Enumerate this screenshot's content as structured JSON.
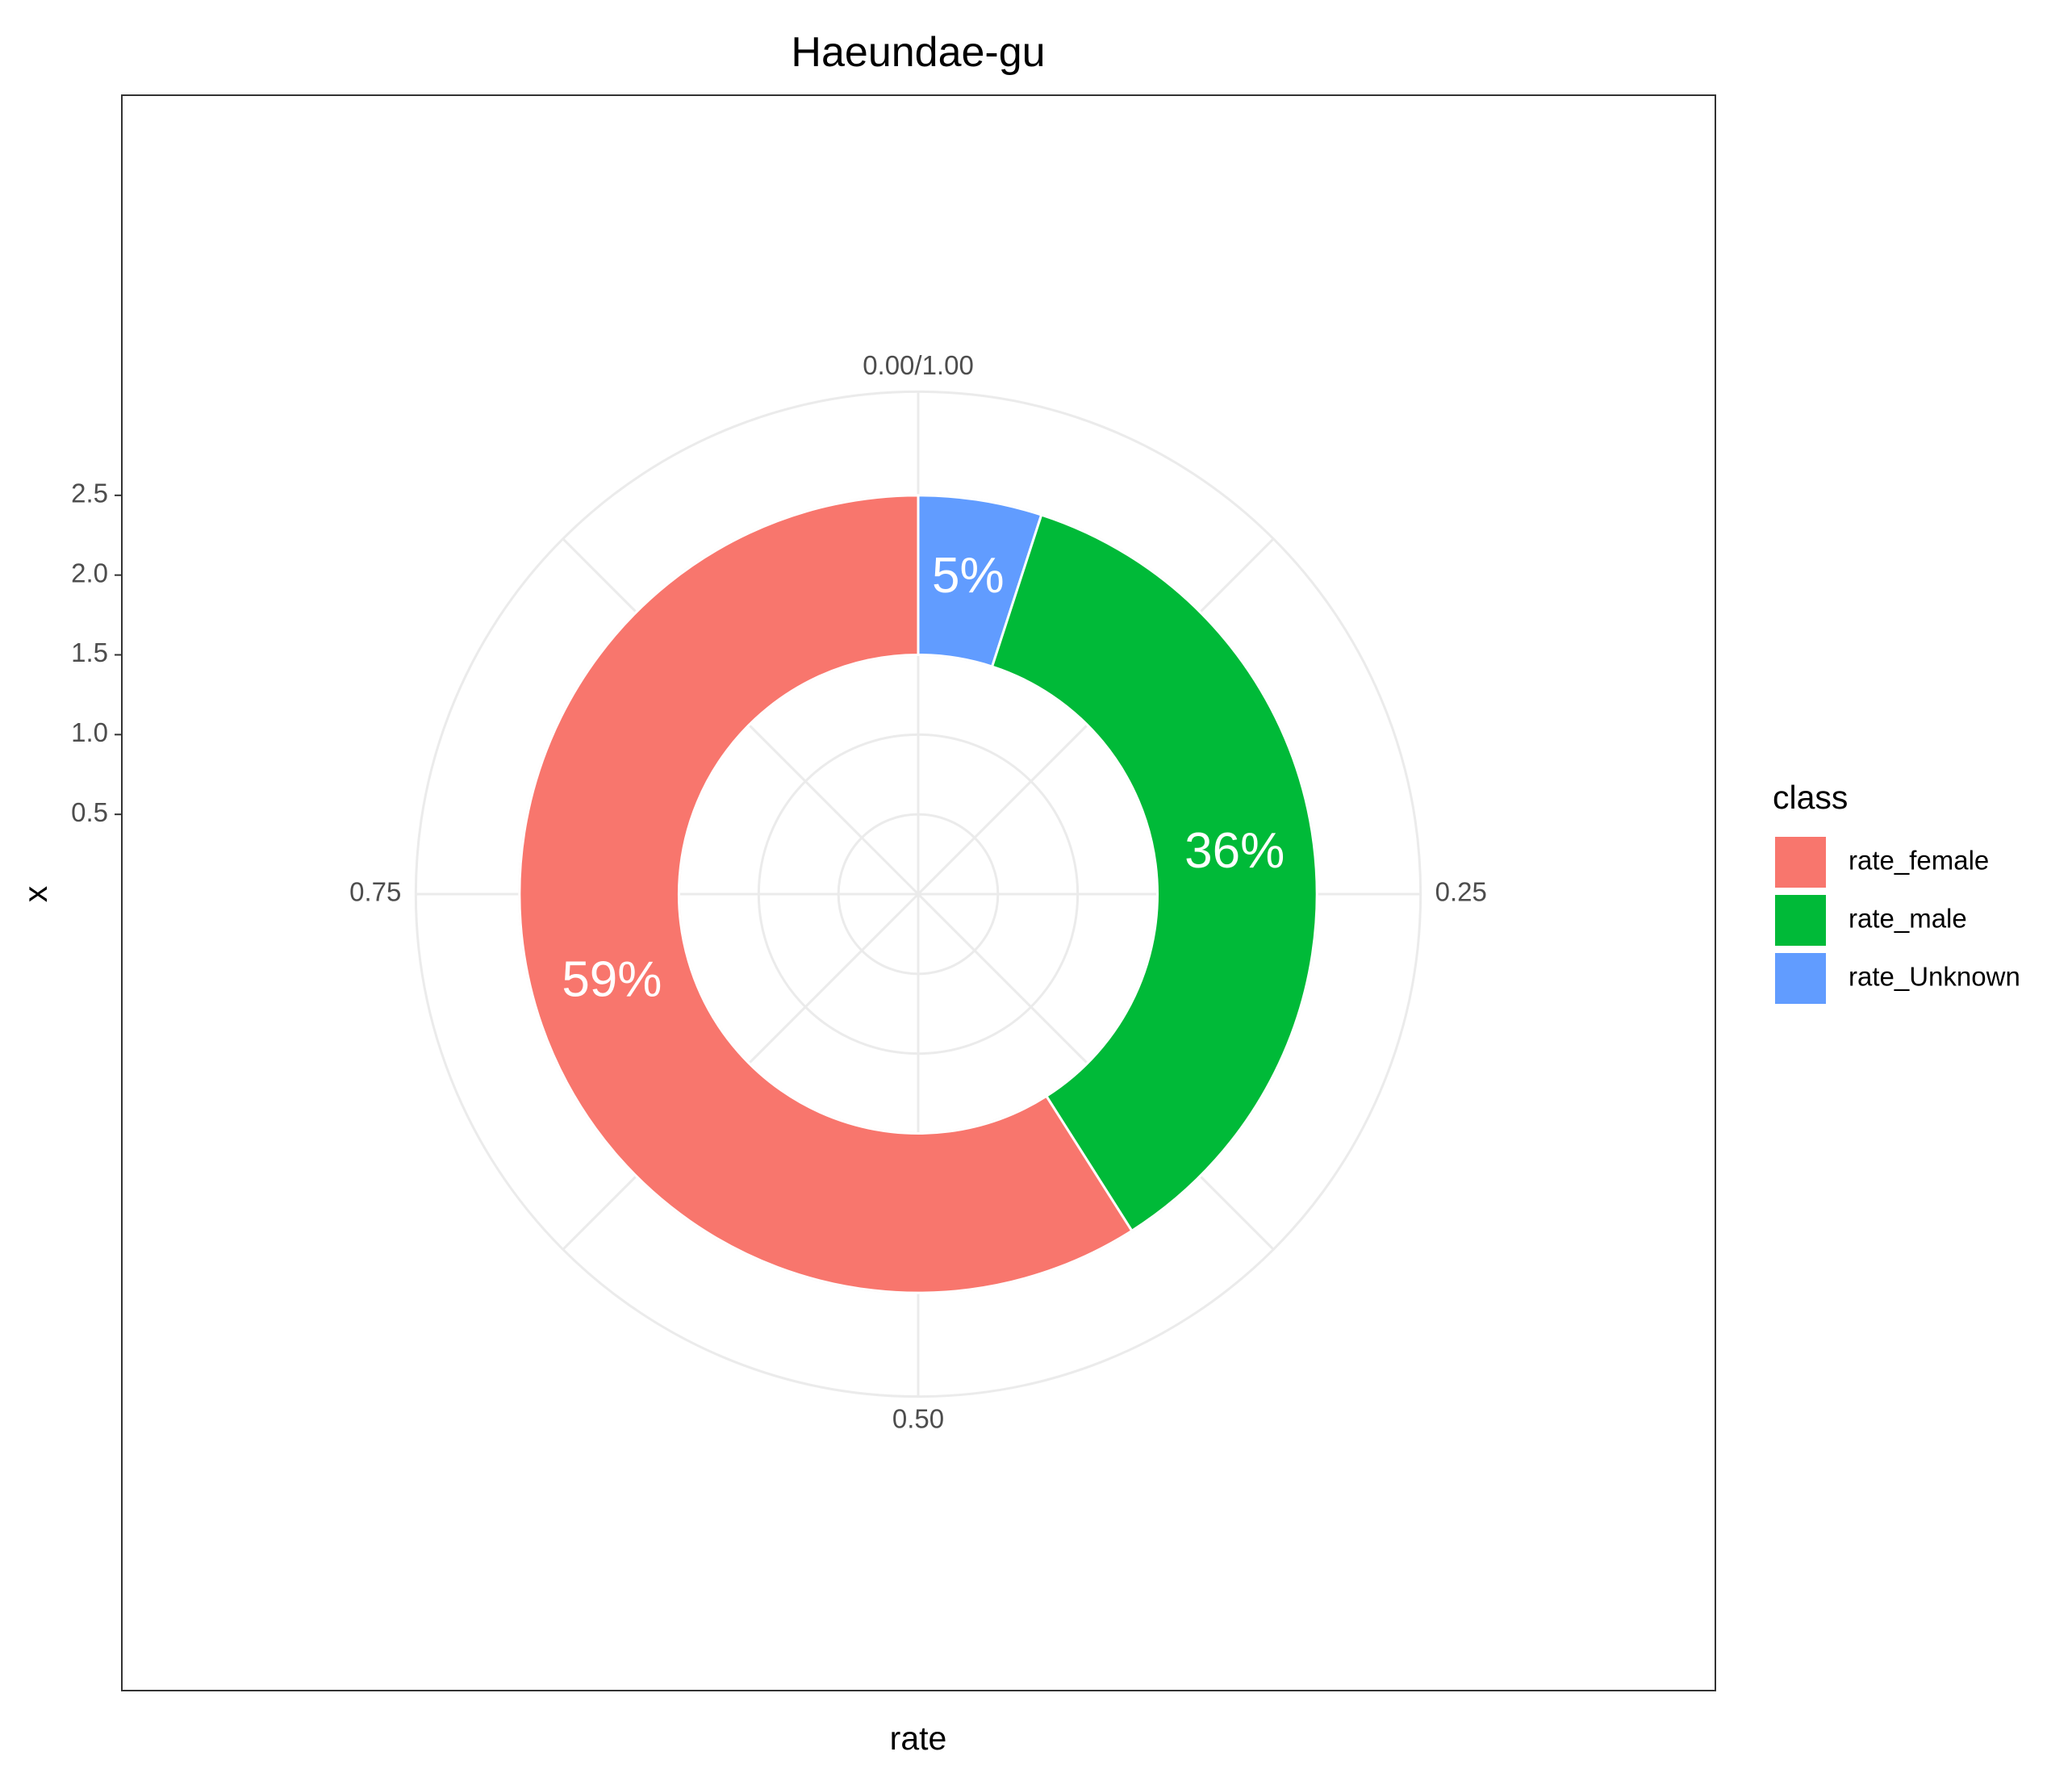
{
  "chart_data": {
    "type": "pie",
    "subtype": "donut",
    "title": "Haeundae-gu",
    "xlabel": "rate",
    "ylabel": "x",
    "y_ticks": [
      "0.5",
      "1.0",
      "1.5",
      "2.0",
      "2.5"
    ],
    "y_tick_values": [
      0.5,
      1.0,
      1.5,
      2.0,
      2.5
    ],
    "angular_ticks": [
      {
        "value": 0.0,
        "label": "0.00/1.00"
      },
      {
        "value": 0.25,
        "label": "0.25"
      },
      {
        "value": 0.5,
        "label": "0.50"
      },
      {
        "value": 0.75,
        "label": "0.75"
      }
    ],
    "ring_range": [
      1.5,
      2.5
    ],
    "y_range": [
      0,
      3
    ],
    "categories": [
      "rate_female",
      "rate_male",
      "rate_Unknown"
    ],
    "values": [
      0.59,
      0.36,
      0.05
    ],
    "slice_order": [
      "rate_Unknown",
      "rate_male",
      "rate_female"
    ],
    "labels": {
      "rate_female": "59%",
      "rate_male": "36%",
      "rate_Unknown": "5%"
    },
    "colors": {
      "rate_female": "#F8766D",
      "rate_male": "#00BA38",
      "rate_Unknown": "#619CFF"
    },
    "legend": {
      "title": "class",
      "position": "right"
    },
    "grid": true
  }
}
